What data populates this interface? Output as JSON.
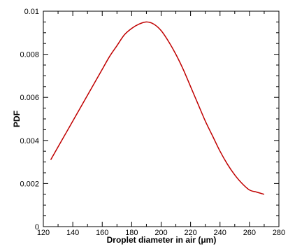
{
  "chart_data": {
    "type": "line",
    "title": "",
    "xlabel": "Droplet diameter in air (μm)",
    "ylabel": "PDF",
    "xlim": [
      120,
      280
    ],
    "ylim": [
      0,
      0.01
    ],
    "x_ticks": [
      "120",
      "140",
      "160",
      "180",
      "200",
      "220",
      "240",
      "260",
      "280"
    ],
    "y_ticks": [
      "0",
      "0.002",
      "0.004",
      "0.006",
      "0.008",
      "0.01"
    ],
    "grid": false,
    "series": [
      {
        "color": "#c00000",
        "x": [
          125,
          130,
          135,
          140,
          145,
          150,
          155,
          160,
          165,
          170,
          175,
          180,
          185,
          190,
          195,
          200,
          205,
          210,
          215,
          220,
          225,
          230,
          235,
          240,
          245,
          250,
          255,
          260,
          265,
          270
        ],
        "y": [
          0.0031,
          0.0037,
          0.0043,
          0.0049,
          0.0055,
          0.0061,
          0.0067,
          0.0073,
          0.0079,
          0.0084,
          0.0089,
          0.0092,
          0.0094,
          0.0095,
          0.0094,
          0.0091,
          0.0086,
          0.008,
          0.0073,
          0.0065,
          0.0057,
          0.0049,
          0.0042,
          0.0035,
          0.0029,
          0.0024,
          0.002,
          0.0017,
          0.0016,
          0.0015
        ]
      }
    ]
  }
}
